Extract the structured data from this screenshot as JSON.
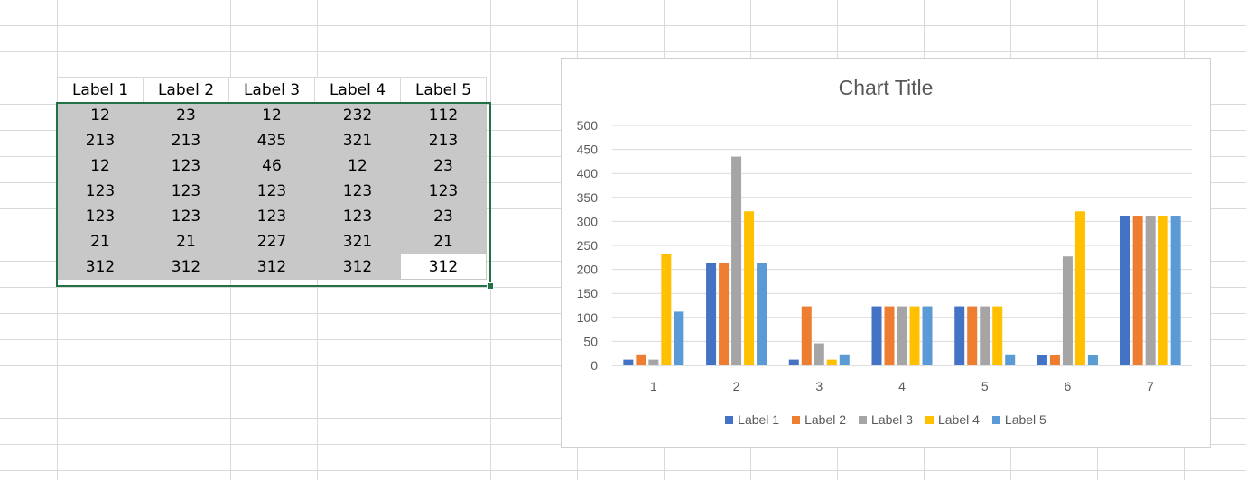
{
  "sheet": {
    "headers": [
      "Label 1",
      "Label 2",
      "Label 3",
      "Label 4",
      "Label 5"
    ],
    "rows": [
      [
        "12",
        "23",
        "12",
        "232",
        "112"
      ],
      [
        "213",
        "213",
        "435",
        "321",
        "213"
      ],
      [
        "12",
        "123",
        "46",
        "12",
        "23"
      ],
      [
        "123",
        "123",
        "123",
        "123",
        "123"
      ],
      [
        "123",
        "123",
        "123",
        "123",
        "23"
      ],
      [
        "21",
        "21",
        "227",
        "321",
        "21"
      ],
      [
        "312",
        "312",
        "312",
        "312",
        "312"
      ]
    ]
  },
  "chart_data": {
    "type": "bar",
    "title": "Chart Title",
    "categories": [
      "1",
      "2",
      "3",
      "4",
      "5",
      "6",
      "7"
    ],
    "ylim": [
      0,
      500
    ],
    "yticks": [
      0,
      50,
      100,
      150,
      200,
      250,
      300,
      350,
      400,
      450,
      500
    ],
    "grid": true,
    "legend_position": "bottom",
    "series": [
      {
        "name": "Label 1",
        "color": "#4472c4",
        "values": [
          12,
          213,
          12,
          123,
          123,
          21,
          312
        ]
      },
      {
        "name": "Label 2",
        "color": "#ed7d31",
        "values": [
          23,
          213,
          123,
          123,
          123,
          21,
          312
        ]
      },
      {
        "name": "Label 3",
        "color": "#a5a5a5",
        "values": [
          12,
          435,
          46,
          123,
          123,
          227,
          312
        ]
      },
      {
        "name": "Label 4",
        "color": "#ffc000",
        "values": [
          232,
          321,
          12,
          123,
          123,
          321,
          312
        ]
      },
      {
        "name": "Label 5",
        "color": "#5b9bd5",
        "values": [
          112,
          213,
          23,
          123,
          23,
          21,
          312
        ]
      }
    ]
  }
}
